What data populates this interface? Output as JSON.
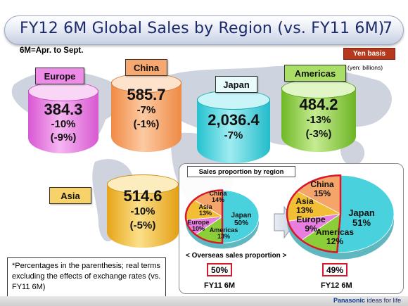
{
  "slide": {
    "title": "FY12 6M Global Sales by Region (vs. FY11 6M)",
    "page_number": "7",
    "subtitle": "6M=Apr. to Sept.",
    "yen_badge": "Yen basis",
    "unit_note": "(yen: billions)"
  },
  "regions": {
    "europe": {
      "label": "Europe",
      "value": "384.3",
      "change": "-10%",
      "real_change": "(-9%)",
      "color": "#e77ee0"
    },
    "china": {
      "label": "China",
      "value": "585.7",
      "change": "-7%",
      "real_change": "(-1%)",
      "color": "#f6a56a"
    },
    "japan": {
      "label": "Japan",
      "value": "2,036.4",
      "change": "-7%",
      "real_change": "",
      "color": "#49d2dd"
    },
    "americas": {
      "label": "Americas",
      "value": "484.2",
      "change": "-13%",
      "real_change": "(-3%)",
      "color": "#8ccd3a"
    },
    "asia": {
      "label": "Asia",
      "value": "514.6",
      "change": "-10%",
      "real_change": "(-5%)",
      "color": "#f2be33"
    }
  },
  "proportion": {
    "title": "Sales proportion by region",
    "overseas_caption": "< Overseas sales proportion >",
    "periods": [
      {
        "name": "FY11 6M",
        "overseas": "50%",
        "slices": [
          {
            "region": "Japan",
            "value": 50,
            "label": "Japan\n50%"
          },
          {
            "region": "Americas",
            "value": 13,
            "label": "Americas\n13%"
          },
          {
            "region": "Europe",
            "value": 10,
            "label": "Europe\n10%"
          },
          {
            "region": "Asia",
            "value": 13,
            "label": "Asia\n13%"
          },
          {
            "region": "China",
            "value": 14,
            "label": "China\n14%"
          }
        ]
      },
      {
        "name": "FY12 6M",
        "overseas": "49%",
        "slices": [
          {
            "region": "Japan",
            "value": 51,
            "label": "Japan\n51%"
          },
          {
            "region": "Americas",
            "value": 12,
            "label": "Americas\n12%"
          },
          {
            "region": "Europe",
            "value": 9,
            "label": "Europe\n9%"
          },
          {
            "region": "Asia",
            "value": 13,
            "label": "Asia\n13%"
          },
          {
            "region": "China",
            "value": 15,
            "label": "China\n15%"
          }
        ]
      }
    ]
  },
  "footnote": "*Percentages in the parenthesis; real terms excluding the effects of exchange rates (vs. FY11 6M)",
  "brand": {
    "name": "Panasonic",
    "tagline": "ideas for life"
  },
  "colors": {
    "title_text": "#1b2a6b",
    "highlight_red": "#d8182a",
    "map": "#c3cad8"
  }
}
